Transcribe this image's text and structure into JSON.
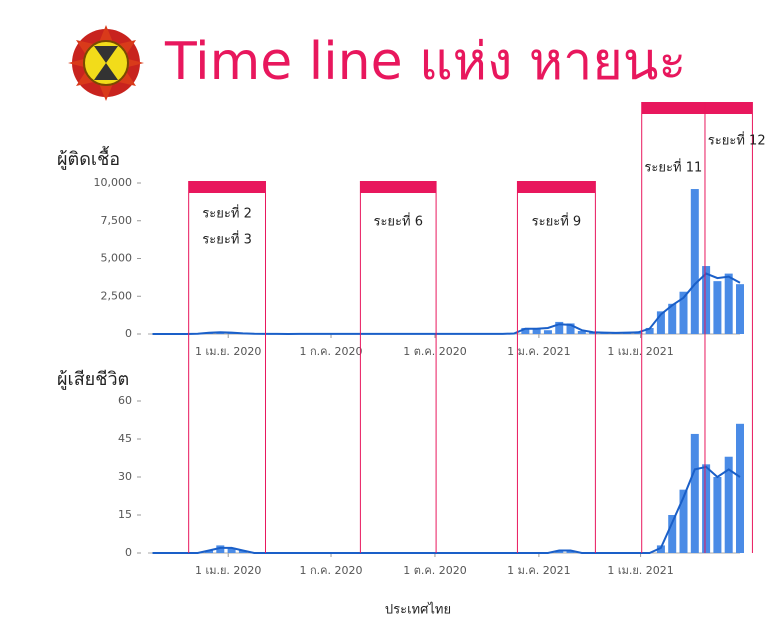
{
  "title": "Time line แห่ง หายนะ",
  "footer": "ประเทศไทย",
  "periods": [
    {
      "labels": [
        "ระยะที่ 2",
        "ระยะที่ 3"
      ],
      "start": "2020-02-26",
      "end": "2020-05-04"
    },
    {
      "labels": [
        "ระยะที่ 6"
      ],
      "start": "2020-07-27",
      "end": "2020-10-02"
    },
    {
      "labels": [
        "ระยะที่ 9"
      ],
      "start": "2020-12-13",
      "end": "2021-02-20"
    },
    {
      "labels": [
        "ระยะที่ 11",
        "ระยะที่ 12"
      ],
      "start": "2021-04-02",
      "divider": "2021-05-28",
      "end": "2021-07-09"
    }
  ],
  "chart_data": [
    {
      "type": "bar",
      "y_label": "ผู้ติดเชื้อ",
      "color": "#4a8be6",
      "trend_color": "#1a5fc8",
      "xlim": [
        "2020-01-21",
        "2021-06-28"
      ],
      "xticks": [
        {
          "value": "2020-04-01",
          "label": "1 เม.ย. 2020"
        },
        {
          "value": "2020-07-01",
          "label": "1 ก.ค. 2020"
        },
        {
          "value": "2020-10-01",
          "label": "1 ต.ค. 2020"
        },
        {
          "value": "2021-01-01",
          "label": "1 ม.ค. 2021"
        },
        {
          "value": "2021-04-01",
          "label": "1 เม.ย. 2021"
        }
      ],
      "ylim": [
        0,
        10000
      ],
      "yticks": [
        0,
        {
          "value": 2500,
          "label": "2,500"
        },
        {
          "value": 5000,
          "label": "5,000"
        },
        {
          "value": 7500,
          "label": "7,500"
        },
        {
          "value": 10000,
          "label": "10,000"
        }
      ],
      "x": [
        "2020-01-25",
        "2020-02-04",
        "2020-02-14",
        "2020-02-24",
        "2020-03-05",
        "2020-03-15",
        "2020-03-25",
        "2020-04-04",
        "2020-04-14",
        "2020-04-24",
        "2020-05-04",
        "2020-05-14",
        "2020-05-24",
        "2020-06-03",
        "2020-06-13",
        "2020-06-23",
        "2020-07-03",
        "2020-07-13",
        "2020-07-23",
        "2020-08-02",
        "2020-08-12",
        "2020-08-22",
        "2020-09-01",
        "2020-09-11",
        "2020-09-21",
        "2020-10-01",
        "2020-10-11",
        "2020-10-21",
        "2020-10-31",
        "2020-11-10",
        "2020-11-20",
        "2020-11-30",
        "2020-12-10",
        "2020-12-20",
        "2020-12-30",
        "2021-01-09",
        "2021-01-19",
        "2021-01-29",
        "2021-02-08",
        "2021-02-18",
        "2021-02-28",
        "2021-03-10",
        "2021-03-20",
        "2021-03-30",
        "2021-04-09",
        "2021-04-19",
        "2021-04-29",
        "2021-05-09",
        "2021-05-19",
        "2021-05-29",
        "2021-06-08",
        "2021-06-18",
        "2021-06-28"
      ],
      "values": [
        0,
        0,
        0,
        5,
        20,
        100,
        120,
        100,
        30,
        10,
        5,
        5,
        2,
        5,
        5,
        5,
        5,
        5,
        5,
        5,
        5,
        5,
        5,
        5,
        5,
        5,
        5,
        5,
        5,
        5,
        5,
        10,
        10,
        400,
        300,
        250,
        800,
        700,
        200,
        100,
        100,
        50,
        100,
        100,
        400,
        1500,
        2000,
        2800,
        9600,
        4500,
        3500,
        4000,
        3300
      ],
      "trend": [
        0,
        0,
        0,
        3,
        20,
        80,
        110,
        90,
        40,
        12,
        6,
        5,
        3,
        5,
        5,
        5,
        5,
        5,
        5,
        5,
        5,
        5,
        5,
        5,
        5,
        5,
        5,
        5,
        5,
        5,
        6,
        8,
        30,
        350,
        350,
        400,
        650,
        600,
        250,
        120,
        90,
        70,
        90,
        110,
        350,
        1300,
        1900,
        2400,
        3300,
        4000,
        3700,
        3800,
        3400
      ]
    },
    {
      "type": "bar",
      "y_label": "ผู้เสียชีวิต",
      "color": "#4a8be6",
      "trend_color": "#1a5fc8",
      "xlim": [
        "2020-01-21",
        "2021-06-28"
      ],
      "xticks": [
        {
          "value": "2020-04-01",
          "label": "1 เม.ย. 2020"
        },
        {
          "value": "2020-07-01",
          "label": "1 ก.ค. 2020"
        },
        {
          "value": "2020-10-01",
          "label": "1 ต.ค. 2020"
        },
        {
          "value": "2021-01-01",
          "label": "1 ม.ค. 2021"
        },
        {
          "value": "2021-04-01",
          "label": "1 เม.ย. 2021"
        }
      ],
      "ylim": [
        0,
        60
      ],
      "yticks": [
        0,
        15,
        30,
        45,
        60
      ],
      "x": [
        "2020-01-25",
        "2020-02-04",
        "2020-02-14",
        "2020-02-24",
        "2020-03-05",
        "2020-03-15",
        "2020-03-25",
        "2020-04-04",
        "2020-04-14",
        "2020-04-24",
        "2020-05-04",
        "2020-05-14",
        "2020-05-24",
        "2020-06-03",
        "2020-06-13",
        "2020-06-23",
        "2020-07-03",
        "2020-07-13",
        "2020-07-23",
        "2020-08-02",
        "2020-08-12",
        "2020-08-22",
        "2020-09-01",
        "2020-09-11",
        "2020-09-21",
        "2020-10-01",
        "2020-10-11",
        "2020-10-21",
        "2020-10-31",
        "2020-11-10",
        "2020-11-20",
        "2020-11-30",
        "2020-12-10",
        "2020-12-20",
        "2020-12-30",
        "2021-01-09",
        "2021-01-19",
        "2021-01-29",
        "2021-02-08",
        "2021-02-18",
        "2021-02-28",
        "2021-03-10",
        "2021-03-20",
        "2021-03-30",
        "2021-04-09",
        "2021-04-19",
        "2021-04-29",
        "2021-05-09",
        "2021-05-19",
        "2021-05-29",
        "2021-06-08",
        "2021-06-18",
        "2021-06-28"
      ],
      "values": [
        0,
        0,
        0,
        0,
        0,
        1,
        3,
        2,
        1,
        0,
        0,
        0,
        0,
        0,
        0,
        0,
        0,
        0,
        0,
        0,
        0,
        0,
        0,
        0,
        0,
        0,
        0,
        0,
        0,
        0,
        0,
        0,
        0,
        0,
        0,
        0,
        1,
        1,
        0,
        0,
        0,
        0,
        0,
        0,
        0,
        3,
        15,
        25,
        47,
        35,
        30,
        38,
        51
      ],
      "trend": [
        0,
        0,
        0,
        0,
        0,
        1,
        2,
        2,
        1,
        0,
        0,
        0,
        0,
        0,
        0,
        0,
        0,
        0,
        0,
        0,
        0,
        0,
        0,
        0,
        0,
        0,
        0,
        0,
        0,
        0,
        0,
        0,
        0,
        0,
        0,
        0,
        1,
        1,
        0,
        0,
        0,
        0,
        0,
        0,
        0,
        2,
        12,
        22,
        33,
        34,
        30,
        33,
        30
      ]
    }
  ]
}
